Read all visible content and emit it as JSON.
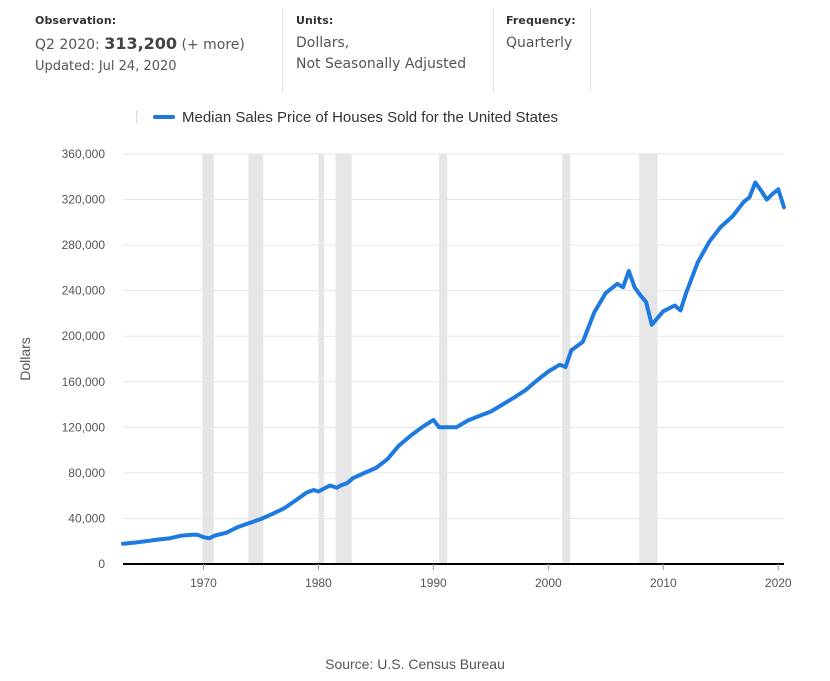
{
  "observation": {
    "heading": "Observation:",
    "period": "Q2 2020:",
    "value": "313,200",
    "more": "(+ more)",
    "updated": "Updated: Jul 24, 2020"
  },
  "units": {
    "heading": "Units:",
    "line1": "Dollars,",
    "line2": "Not Seasonally Adjusted"
  },
  "frequency": {
    "heading": "Frequency:",
    "value": "Quarterly"
  },
  "source": "Source: U.S. Census Bureau",
  "colors": {
    "series": "#1f7ae0",
    "recession": "#e6e6e6",
    "grid": "#e6e6e6",
    "axis": "#000000"
  },
  "chart_data": {
    "type": "line",
    "title": "",
    "xlabel": "",
    "ylabel": "Dollars",
    "xlim": [
      1963.0,
      2020.5
    ],
    "ylim": [
      0,
      360000
    ],
    "y_ticks": [
      0,
      40000,
      80000,
      120000,
      160000,
      200000,
      240000,
      280000,
      320000,
      360000
    ],
    "y_tick_labels": [
      "0",
      "40,000",
      "80,000",
      "120,000",
      "160,000",
      "200,000",
      "240,000",
      "280,000",
      "320,000",
      "360,000"
    ],
    "x_ticks": [
      1970,
      1980,
      1990,
      2000,
      2010,
      2020
    ],
    "x_tick_labels": [
      "1970",
      "1980",
      "1990",
      "2000",
      "2010",
      "2020"
    ],
    "grid": "horizontal",
    "legend": "top",
    "recessions": [
      [
        1969.9,
        1970.9
      ],
      [
        1973.9,
        1975.2
      ],
      [
        1980.0,
        1980.5
      ],
      [
        1981.5,
        1982.9
      ],
      [
        1990.5,
        1991.2
      ],
      [
        2001.2,
        2001.9
      ],
      [
        2007.9,
        2009.5
      ]
    ],
    "series": [
      {
        "name": "Median Sales Price of Houses Sold for the United States",
        "x": [
          1963.0,
          1964.0,
          1965.0,
          1966.0,
          1967.0,
          1968.0,
          1969.0,
          1969.5,
          1970.0,
          1970.5,
          1971.0,
          1972.0,
          1973.0,
          1974.0,
          1975.0,
          1976.0,
          1977.0,
          1978.0,
          1979.0,
          1979.6,
          1980.0,
          1981.0,
          1981.6,
          1982.0,
          1982.5,
          1983.0,
          1984.0,
          1985.0,
          1986.0,
          1987.0,
          1988.0,
          1989.0,
          1990.0,
          1990.5,
          1991.0,
          1992.0,
          1993.0,
          1994.0,
          1995.0,
          1996.0,
          1997.0,
          1998.0,
          1999.0,
          2000.0,
          2001.0,
          2001.5,
          2002.0,
          2003.0,
          2004.0,
          2005.0,
          2006.0,
          2006.5,
          2007.0,
          2007.5,
          2008.0,
          2008.5,
          2009.0,
          2009.5,
          2010.0,
          2011.0,
          2011.5,
          2012.0,
          2013.0,
          2014.0,
          2015.0,
          2016.0,
          2017.0,
          2017.5,
          2018.0,
          2018.5,
          2019.0,
          2019.5,
          2020.0,
          2020.5
        ],
        "y": [
          17800,
          18800,
          20000,
          21400,
          22500,
          24800,
          25600,
          25600,
          23500,
          22600,
          25000,
          27500,
          32500,
          36000,
          39500,
          44000,
          48800,
          55700,
          62900,
          65000,
          63700,
          68900,
          67000,
          69300,
          71000,
          75300,
          80000,
          84300,
          92000,
          104000,
          112500,
          120000,
          126500,
          120000,
          120000,
          120000,
          126000,
          130000,
          133900,
          140000,
          146000,
          152500,
          161000,
          169000,
          175000,
          173000,
          187600,
          195000,
          221000,
          238000,
          246000,
          243000,
          257400,
          243000,
          236000,
          230000,
          210000,
          216000,
          222000,
          227000,
          222700,
          238400,
          265000,
          283000,
          296000,
          305000,
          318000,
          322000,
          335000,
          328000,
          320000,
          325000,
          329000,
          313200
        ]
      }
    ]
  }
}
